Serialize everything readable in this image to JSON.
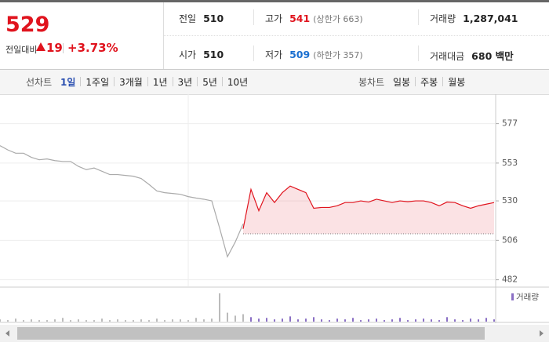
{
  "header": {
    "price": "529",
    "change_label": "전일대비",
    "change": "19",
    "change_rate": "+3.73%"
  },
  "stats": [
    [
      {
        "label": "전일",
        "value": "510"
      },
      {
        "label": "고가",
        "value": "541",
        "note": "(상한가 663)"
      },
      {
        "label": "거래량",
        "value": "1,287,041"
      }
    ],
    [
      {
        "label": "시가",
        "value": "510"
      },
      {
        "label": "저가",
        "value": "509",
        "note": "(하한가 357)"
      },
      {
        "label": "거래대금",
        "value": "680 백만"
      }
    ]
  ],
  "tabs": {
    "line_label": "선차트",
    "line": [
      "1일",
      "1주일",
      "3개월",
      "1년",
      "3년",
      "5년",
      "10년"
    ],
    "candle_label": "봉차트",
    "candle": [
      "일봉",
      "주봉",
      "월봉"
    ]
  },
  "chart_data": [
    {
      "type": "line",
      "categories": [
        null,
        null,
        null,
        null,
        null,
        null,
        null,
        null,
        null,
        null,
        null,
        null,
        null,
        null,
        null,
        null,
        null,
        null,
        null,
        null,
        null,
        null,
        null,
        null,
        null,
        null,
        null,
        null,
        null,
        null,
        null,
        null,
        null,
        null,
        null,
        null,
        null,
        null,
        null,
        null,
        null,
        null,
        null,
        null,
        null,
        null,
        null,
        null,
        null,
        null,
        null,
        null,
        null,
        null,
        null,
        null,
        null,
        null,
        null,
        null,
        null,
        null,
        null,
        null
      ],
      "series": [
        {
          "color": "#aaaaaa",
          "values": [
            563.6,
            561,
            559,
            559,
            556.5,
            555,
            555.5,
            554.5,
            554,
            554,
            551,
            549,
            550,
            548,
            546,
            546,
            545.5,
            545,
            543.6,
            540,
            536,
            535,
            534.5,
            534,
            532.6,
            531.7,
            531,
            530,
            513.5,
            496,
            505,
            516,
            null,
            null,
            null,
            null,
            null,
            null,
            null,
            null,
            null,
            null,
            null,
            null,
            null,
            null,
            null,
            null,
            null,
            null,
            null,
            null,
            null,
            null,
            null,
            null,
            null,
            null,
            null,
            null,
            null,
            null,
            null,
            null
          ]
        },
        {
          "color": "#e0141e",
          "values": [
            null,
            null,
            null,
            null,
            null,
            null,
            null,
            null,
            null,
            null,
            null,
            null,
            null,
            null,
            null,
            null,
            null,
            null,
            null,
            null,
            null,
            null,
            null,
            null,
            null,
            null,
            null,
            null,
            null,
            null,
            null,
            513,
            537,
            524,
            535,
            529,
            535,
            539,
            537,
            535,
            525.5,
            526,
            526,
            527,
            529,
            529,
            530,
            529.3,
            531,
            530,
            529,
            530,
            529.5,
            530,
            530,
            529,
            527,
            529.3,
            529,
            527,
            525.5,
            527,
            528,
            529
          ]
        }
      ],
      "baseline": 510,
      "ylim": [
        478,
        594
      ],
      "yticks": [
        577,
        553,
        530,
        506,
        482
      ],
      "grid": true
    },
    {
      "type": "bar",
      "series": [
        {
          "color": "#bbbbbb",
          "values": [
            3,
            2,
            4,
            2,
            3,
            2,
            2,
            3,
            5,
            2,
            3,
            2,
            2,
            4,
            2,
            3,
            2,
            2,
            3,
            2,
            4,
            2,
            3,
            3,
            2,
            5,
            3,
            4,
            38,
            12,
            8,
            10,
            null,
            null,
            null,
            null,
            null,
            null,
            null,
            null,
            null,
            null,
            null,
            null,
            null,
            null,
            null,
            null,
            null,
            null,
            null,
            null,
            null,
            null,
            null,
            null,
            null,
            null,
            null,
            null,
            null,
            null,
            null,
            null
          ]
        },
        {
          "name": "거래량",
          "color": "#8a6fc4",
          "values": [
            null,
            null,
            null,
            null,
            null,
            null,
            null,
            null,
            null,
            null,
            null,
            null,
            null,
            null,
            null,
            null,
            null,
            null,
            null,
            null,
            null,
            null,
            null,
            null,
            null,
            null,
            null,
            null,
            null,
            null,
            null,
            null,
            6,
            4,
            5,
            3,
            4,
            7,
            3,
            4,
            6,
            3,
            2,
            4,
            3,
            5,
            2,
            3,
            4,
            2,
            3,
            5,
            2,
            3,
            4,
            3,
            2,
            6,
            3,
            2,
            4,
            3,
            5,
            3
          ]
        }
      ],
      "ylim": [
        0,
        40
      ]
    }
  ]
}
